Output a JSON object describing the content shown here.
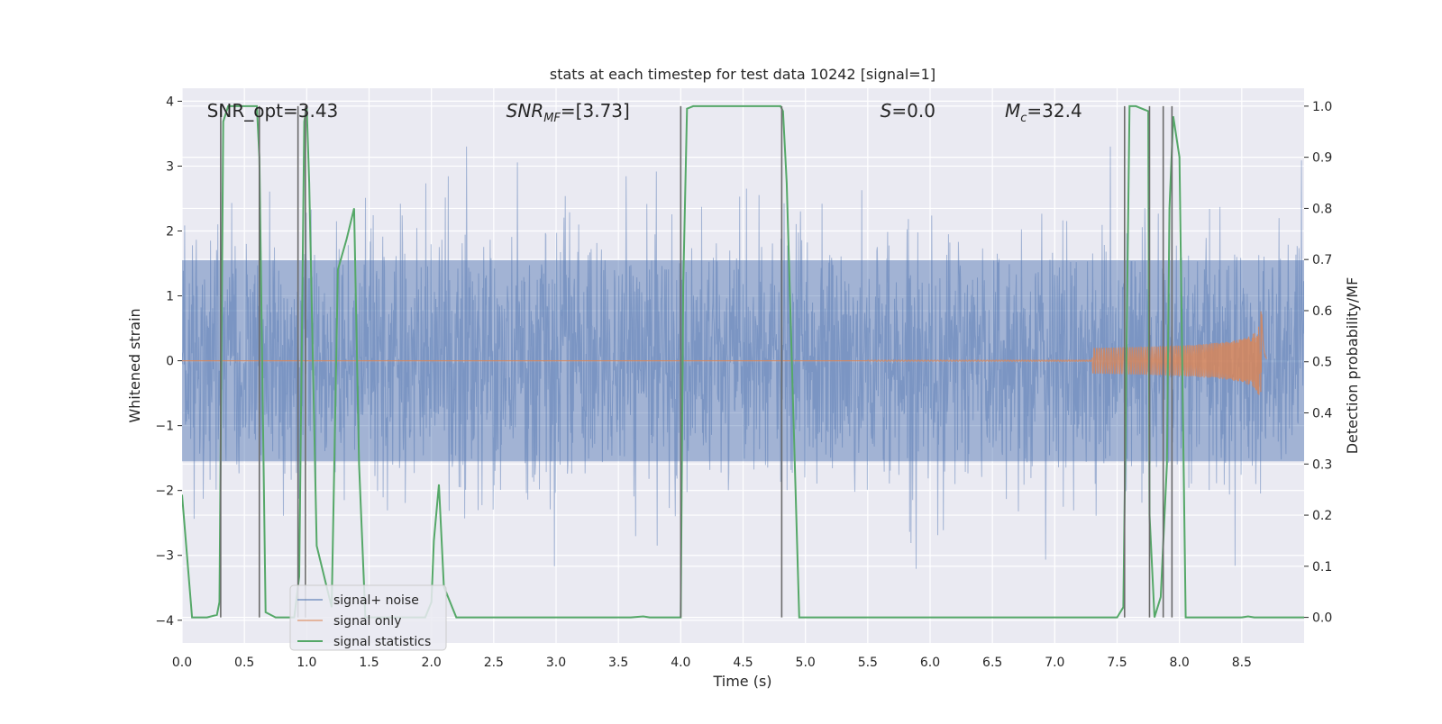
{
  "chart_data": {
    "type": "line",
    "title": "stats at each timestep for test data 10242 [signal=1]",
    "xlabel": "Time (s)",
    "ylabel_left": "Whitened strain",
    "ylabel_right": "Detection probability/MF",
    "xlim": [
      0,
      9.0
    ],
    "ylim_left": [
      -4.35,
      4.2
    ],
    "ylim_right": [
      -0.05,
      1.035
    ],
    "x_ticks": [
      "0.0",
      "0.5",
      "1.0",
      "1.5",
      "2.0",
      "2.5",
      "3.0",
      "3.5",
      "4.0",
      "4.5",
      "5.0",
      "5.5",
      "6.0",
      "6.5",
      "7.0",
      "7.5",
      "8.0",
      "8.5"
    ],
    "y_ticks_left": [
      "−4",
      "−3",
      "−2",
      "−1",
      "0",
      "1",
      "2",
      "3",
      "4"
    ],
    "y_ticks_right": [
      "0.0",
      "0.1",
      "0.2",
      "0.3",
      "0.4",
      "0.5",
      "0.6",
      "0.7",
      "0.8",
      "0.9",
      "1.0"
    ],
    "grid": true,
    "legend_position": "lower-left",
    "annotations": [
      {
        "text": "SNR_opt=3.43",
        "x": 0.2,
        "y": 3.85
      },
      {
        "text": "SNR_MF=[3.73]",
        "x": 2.6,
        "y": 3.85
      },
      {
        "text": "S=0.0",
        "x": 5.6,
        "y": 3.85
      },
      {
        "text": "M_c=32.4",
        "x": 6.6,
        "y": 3.85
      }
    ],
    "series": [
      {
        "name": "signal+ noise",
        "axis": "left",
        "color": "#4c72b0",
        "kind": "noise",
        "envelope": 2.3,
        "x_range": [
          0,
          9.0
        ]
      },
      {
        "name": "signal only",
        "axis": "left",
        "color": "#dd8452",
        "kind": "chirp",
        "merger_time": 8.66,
        "peak_amplitude": 0.85,
        "x_range": [
          5.5,
          8.7
        ]
      },
      {
        "name": "signal statistics",
        "axis": "right",
        "color": "#55a868",
        "x": [
          0.0,
          0.08,
          0.2,
          0.28,
          0.3,
          0.33,
          0.37,
          0.6,
          0.62,
          0.67,
          0.75,
          0.9,
          0.94,
          0.98,
          1.0,
          1.02,
          1.08,
          1.18,
          1.2,
          1.25,
          1.32,
          1.38,
          1.42,
          1.47,
          1.55,
          1.6,
          1.95,
          2.0,
          2.02,
          2.06,
          2.1,
          2.2,
          3.6,
          3.7,
          3.75,
          4.0,
          4.02,
          4.05,
          4.1,
          4.8,
          4.82,
          4.85,
          4.95,
          5.2,
          7.3,
          7.5,
          7.55,
          7.6,
          7.65,
          7.75,
          7.76,
          7.8,
          7.85,
          7.9,
          7.92,
          7.95,
          8.0,
          8.05,
          8.5,
          8.55,
          8.6,
          9.0
        ],
        "y": [
          0.24,
          0.0,
          0.0,
          0.005,
          0.03,
          0.97,
          1.0,
          1.0,
          0.9,
          0.01,
          0.0,
          0.0,
          0.08,
          0.97,
          1.0,
          0.85,
          0.14,
          0.04,
          0.02,
          0.68,
          0.74,
          0.8,
          0.3,
          0.0,
          0.0,
          0.0,
          0.0,
          0.03,
          0.15,
          0.26,
          0.06,
          0.0,
          0.0,
          0.002,
          0.0,
          0.0,
          0.65,
          0.995,
          1.0,
          1.0,
          0.99,
          0.85,
          0.0,
          0.0,
          0.0,
          0.0,
          0.02,
          1.0,
          1.0,
          0.99,
          0.2,
          0.0,
          0.04,
          0.3,
          0.8,
          0.98,
          0.9,
          0.0,
          0.0,
          0.002,
          0.0,
          0.0
        ]
      }
    ],
    "vertical_markers_x": [
      0.31,
      0.62,
      0.93,
      0.99,
      4.0,
      4.81,
      7.56,
      7.76,
      7.87,
      7.94
    ],
    "vertical_marker_color": "#6b6b6b"
  }
}
